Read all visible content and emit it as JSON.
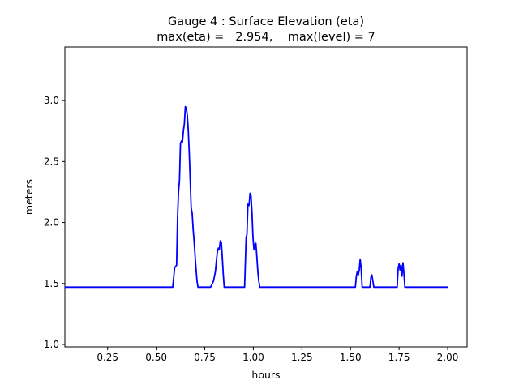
{
  "chart_data": {
    "type": "line",
    "title": "Gauge 4 : Surface Elevation (eta)",
    "subtitle": "max(eta) =   2.954,    max(level) = 7",
    "xlabel": "hours",
    "ylabel": "meters",
    "xlim": [
      0.03,
      2.1
    ],
    "ylim": [
      0.98,
      3.44
    ],
    "xticks": [
      0.25,
      0.5,
      0.75,
      1.0,
      1.25,
      1.5,
      1.75,
      2.0
    ],
    "xtick_labels": [
      "0.25",
      "0.50",
      "0.75",
      "1.00",
      "1.25",
      "1.50",
      "1.75",
      "2.00"
    ],
    "yticks": [
      1.0,
      1.5,
      2.0,
      2.5,
      3.0
    ],
    "ytick_labels": [
      "1.0",
      "1.5",
      "2.0",
      "2.5",
      "3.0"
    ],
    "grid": false,
    "series": [
      {
        "color": "#0000ff",
        "x": [
          0.03,
          0.2,
          0.4,
          0.585,
          0.595,
          0.605,
          0.61,
          0.615,
          0.62,
          0.625,
          0.63,
          0.635,
          0.64,
          0.645,
          0.65,
          0.655,
          0.66,
          0.665,
          0.67,
          0.675,
          0.68,
          0.685,
          0.69,
          0.695,
          0.7,
          0.705,
          0.71,
          0.715,
          0.72,
          0.725,
          0.73,
          0.735,
          0.74,
          0.75,
          0.78,
          0.795,
          0.8,
          0.805,
          0.81,
          0.815,
          0.82,
          0.825,
          0.83,
          0.835,
          0.84,
          0.845,
          0.85,
          0.9,
          0.955,
          0.963,
          0.967,
          0.972,
          0.978,
          0.983,
          0.988,
          0.993,
          0.998,
          1.003,
          1.008,
          1.013,
          1.018,
          1.023,
          1.028,
          1.033,
          1.04,
          1.05,
          1.2,
          1.4,
          1.525,
          1.53,
          1.535,
          1.54,
          1.545,
          1.55,
          1.555,
          1.56,
          1.565,
          1.57,
          1.575,
          1.6,
          1.605,
          1.61,
          1.615,
          1.62,
          1.625,
          1.7,
          1.74,
          1.745,
          1.75,
          1.755,
          1.76,
          1.765,
          1.77,
          1.775,
          1.78,
          1.785,
          1.9,
          2.0
        ],
        "y": [
          1.47,
          1.47,
          1.47,
          1.47,
          1.63,
          1.65,
          2.05,
          2.25,
          2.35,
          2.65,
          2.67,
          2.66,
          2.75,
          2.81,
          2.95,
          2.94,
          2.88,
          2.76,
          2.58,
          2.35,
          2.12,
          2.08,
          1.95,
          1.85,
          1.73,
          1.62,
          1.52,
          1.47,
          1.47,
          1.47,
          1.47,
          1.47,
          1.47,
          1.47,
          1.47,
          1.52,
          1.56,
          1.6,
          1.69,
          1.76,
          1.79,
          1.78,
          1.85,
          1.84,
          1.72,
          1.58,
          1.47,
          1.47,
          1.47,
          1.88,
          1.9,
          2.15,
          2.14,
          2.24,
          2.22,
          2.08,
          1.88,
          1.78,
          1.82,
          1.83,
          1.72,
          1.6,
          1.52,
          1.47,
          1.47,
          1.47,
          1.47,
          1.47,
          1.47,
          1.56,
          1.6,
          1.57,
          1.61,
          1.7,
          1.62,
          1.47,
          1.47,
          1.47,
          1.47,
          1.47,
          1.55,
          1.57,
          1.52,
          1.47,
          1.47,
          1.47,
          1.47,
          1.62,
          1.66,
          1.61,
          1.65,
          1.56,
          1.67,
          1.58,
          1.47,
          1.47,
          1.47,
          1.47
        ]
      }
    ]
  }
}
